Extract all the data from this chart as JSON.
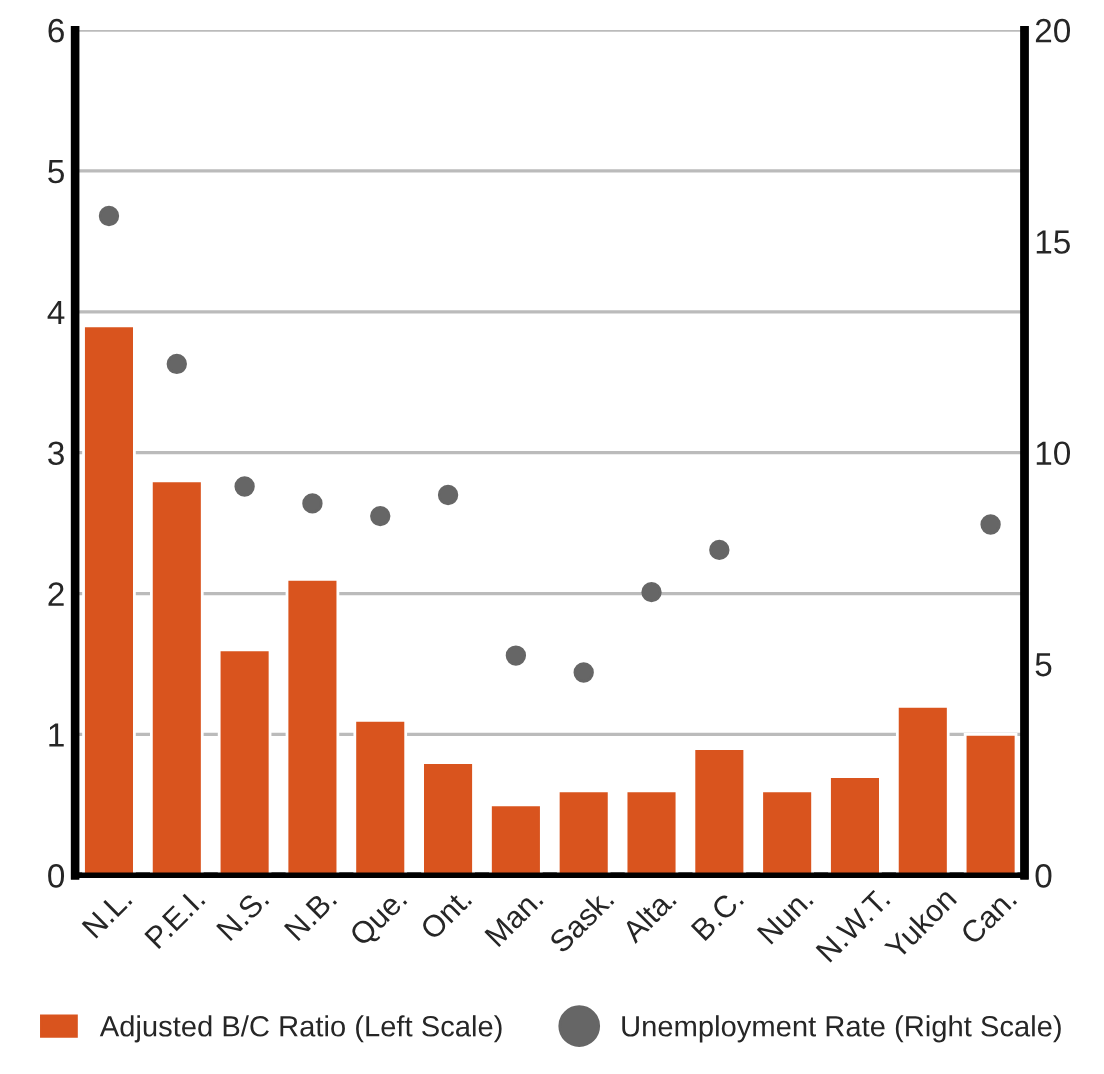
{
  "chart_data": {
    "type": "bar",
    "categories": [
      "N.L.",
      "P.E.I.",
      "N.S.",
      "N.B.",
      "Que.",
      "Ont.",
      "Man.",
      "Sask.",
      "Alta.",
      "B.C.",
      "Nun.",
      "N.W.T.",
      "Yukon",
      "Can."
    ],
    "series": [
      {
        "name": "Adjusted B/C Ratio (Left Scale)",
        "color": "#d9541e",
        "values": [
          3.9,
          2.8,
          1.6,
          2.1,
          1.1,
          0.8,
          0.5,
          0.6,
          0.6,
          0.9,
          0.6,
          0.7,
          1.2,
          1.0
        ]
      },
      {
        "name": "Unemployment Rate (Right Scale)",
        "type": "scatter",
        "axis": "y2",
        "color": "#666666",
        "values": [
          15.6,
          12.1,
          9.2,
          8.8,
          8.5,
          9.0,
          5.2,
          4.8,
          6.7,
          7.7,
          null,
          null,
          null,
          8.3
        ]
      }
    ],
    "ylim": [
      0,
      6
    ],
    "yticks": [
      0,
      1,
      2,
      3,
      4,
      5,
      6
    ],
    "y2lim": [
      0,
      20
    ],
    "y2ticks": [
      0,
      5,
      10,
      15,
      20
    ],
    "grid": "y",
    "legend": "bottom",
    "marker": "circle"
  }
}
